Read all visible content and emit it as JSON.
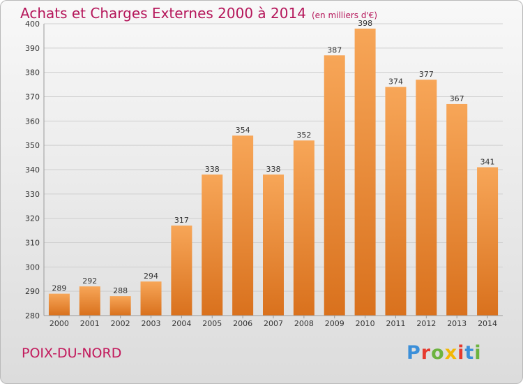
{
  "header": {
    "title": "Achats et Charges Externes 2000 à 2014",
    "subtitle": "(en milliers d'€)"
  },
  "footer": {
    "commune": "POIX-DU-NORD",
    "logo_text": "Proxiti"
  },
  "colors": {
    "title": "#b5165a",
    "bar_top": "#f7a658",
    "bar_bottom": "#d9711d",
    "logo": [
      "#3b8fd9",
      "#e63a2e",
      "#6cb33f",
      "#f2b705",
      "#e63a2e",
      "#3b8fd9",
      "#6cb33f"
    ]
  },
  "chart_data": {
    "type": "bar",
    "categories": [
      "2000",
      "2001",
      "2002",
      "2003",
      "2004",
      "2005",
      "2006",
      "2007",
      "2008",
      "2009",
      "2010",
      "2011",
      "2012",
      "2013",
      "2014"
    ],
    "values": [
      289,
      292,
      288,
      294,
      317,
      338,
      354,
      338,
      352,
      387,
      398,
      374,
      377,
      367,
      341
    ],
    "ylim": [
      280,
      400
    ],
    "yticks": [
      280,
      290,
      300,
      310,
      320,
      330,
      340,
      350,
      360,
      370,
      380,
      390,
      400
    ],
    "grid": true,
    "data_labels": true
  }
}
